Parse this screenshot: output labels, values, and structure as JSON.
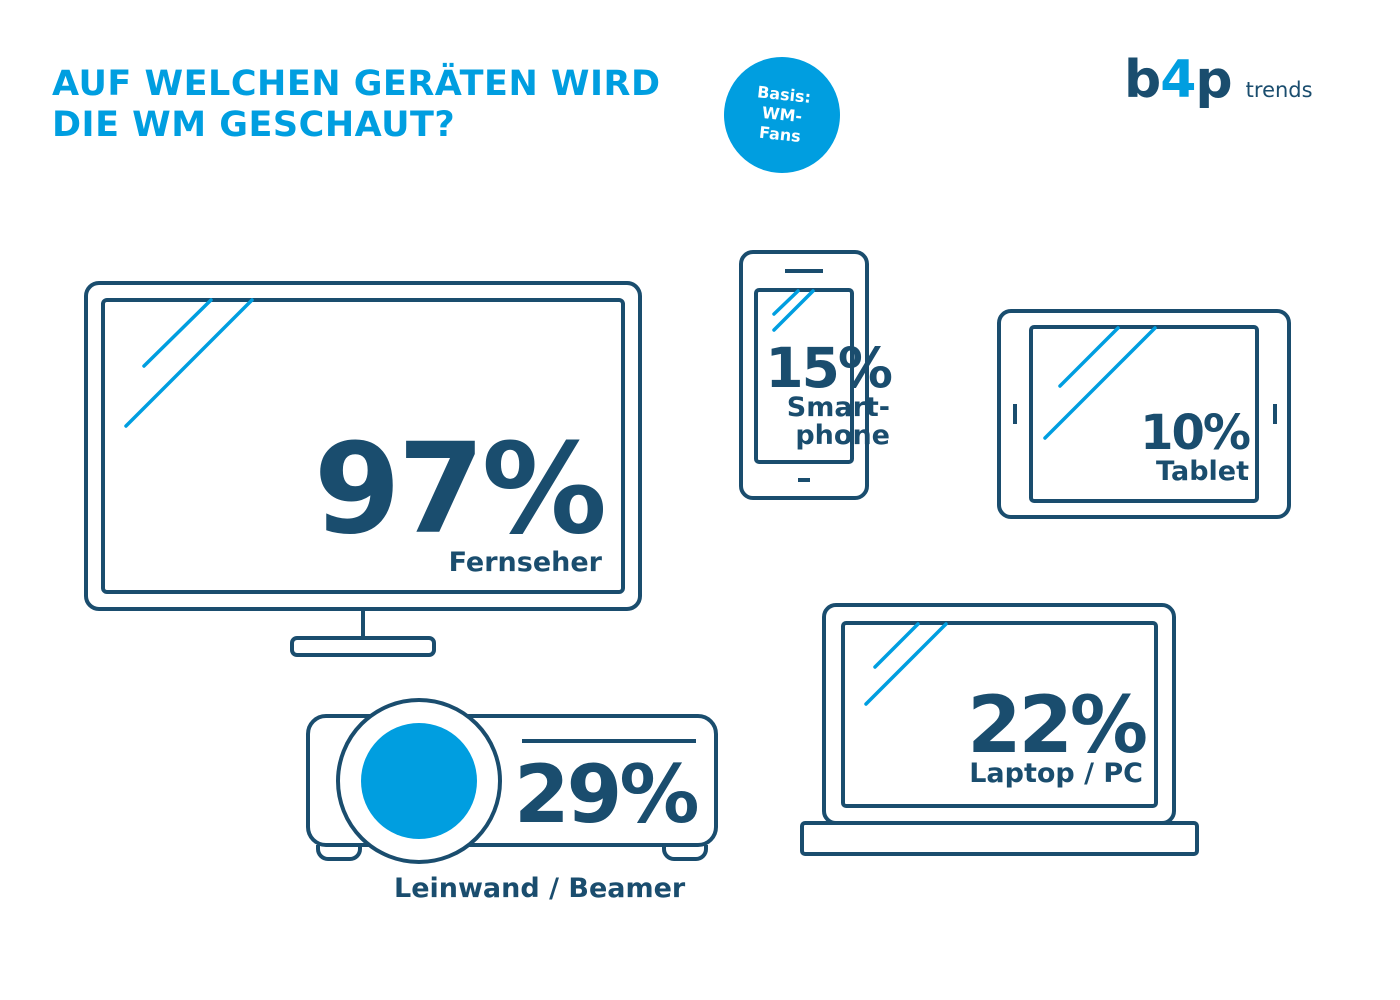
{
  "title": {
    "line1": "AUF WELCHEN GERÄTEN WIRD",
    "line2": "DIE WM GESCHAUT?"
  },
  "badge": {
    "line1": "Basis:",
    "line2": "WM-",
    "line3": "Fans"
  },
  "logo": {
    "main_left": "b",
    "main_plus": "4",
    "main_right": "p",
    "sub": "trends"
  },
  "colors": {
    "accent": "#009ee0",
    "dark": "#1a4d6e"
  },
  "devices": {
    "tv": {
      "percent": "97%",
      "label": "Fernseher",
      "icon": "tv-icon"
    },
    "smartphone": {
      "percent": "15%",
      "label_line1": "Smart-",
      "label_line2": "phone",
      "icon": "smartphone-icon"
    },
    "tablet": {
      "percent": "10%",
      "label": "Tablet",
      "icon": "tablet-icon"
    },
    "projector": {
      "percent": "29%",
      "label": "Leinwand / Beamer",
      "icon": "projector-icon"
    },
    "laptop": {
      "percent": "22%",
      "label": "Laptop / PC",
      "icon": "laptop-icon"
    }
  }
}
